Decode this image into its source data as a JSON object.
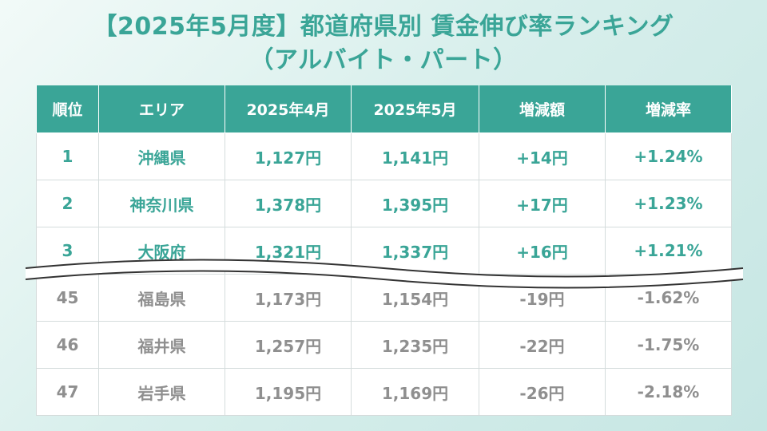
{
  "title": {
    "line1": "【2025年5月度】都道府県別 賃金伸び率ランキング",
    "line2": "（アルバイト・パート）"
  },
  "table": {
    "headers": [
      "順位",
      "エリア",
      "2025年4月",
      "2025年5月",
      "増減額",
      "増減率"
    ],
    "top_rows": [
      {
        "rank": "1",
        "area": "沖縄県",
        "apr": "1,127円",
        "may": "1,141円",
        "diff": "+14円",
        "rate": "+1.24%"
      },
      {
        "rank": "2",
        "area": "神奈川県",
        "apr": "1,378円",
        "may": "1,395円",
        "diff": "+17円",
        "rate": "+1.23%"
      },
      {
        "rank": "3",
        "area": "大阪府",
        "apr": "1,321円",
        "may": "1,337円",
        "diff": "+16円",
        "rate": "+1.21%"
      }
    ],
    "bottom_rows": [
      {
        "rank": "45",
        "area": "福島県",
        "apr": "1,173円",
        "may": "1,154円",
        "diff": "-19円",
        "rate": "-1.62%"
      },
      {
        "rank": "46",
        "area": "福井県",
        "apr": "1,257円",
        "may": "1,235円",
        "diff": "-22円",
        "rate": "-1.75%"
      },
      {
        "rank": "47",
        "area": "岩手県",
        "apr": "1,195円",
        "may": "1,169円",
        "diff": "-26円",
        "rate": "-2.18%"
      }
    ]
  },
  "colors": {
    "accent": "#3aa597",
    "muted_text": "#8f8f8f",
    "background": "#d8efec"
  }
}
